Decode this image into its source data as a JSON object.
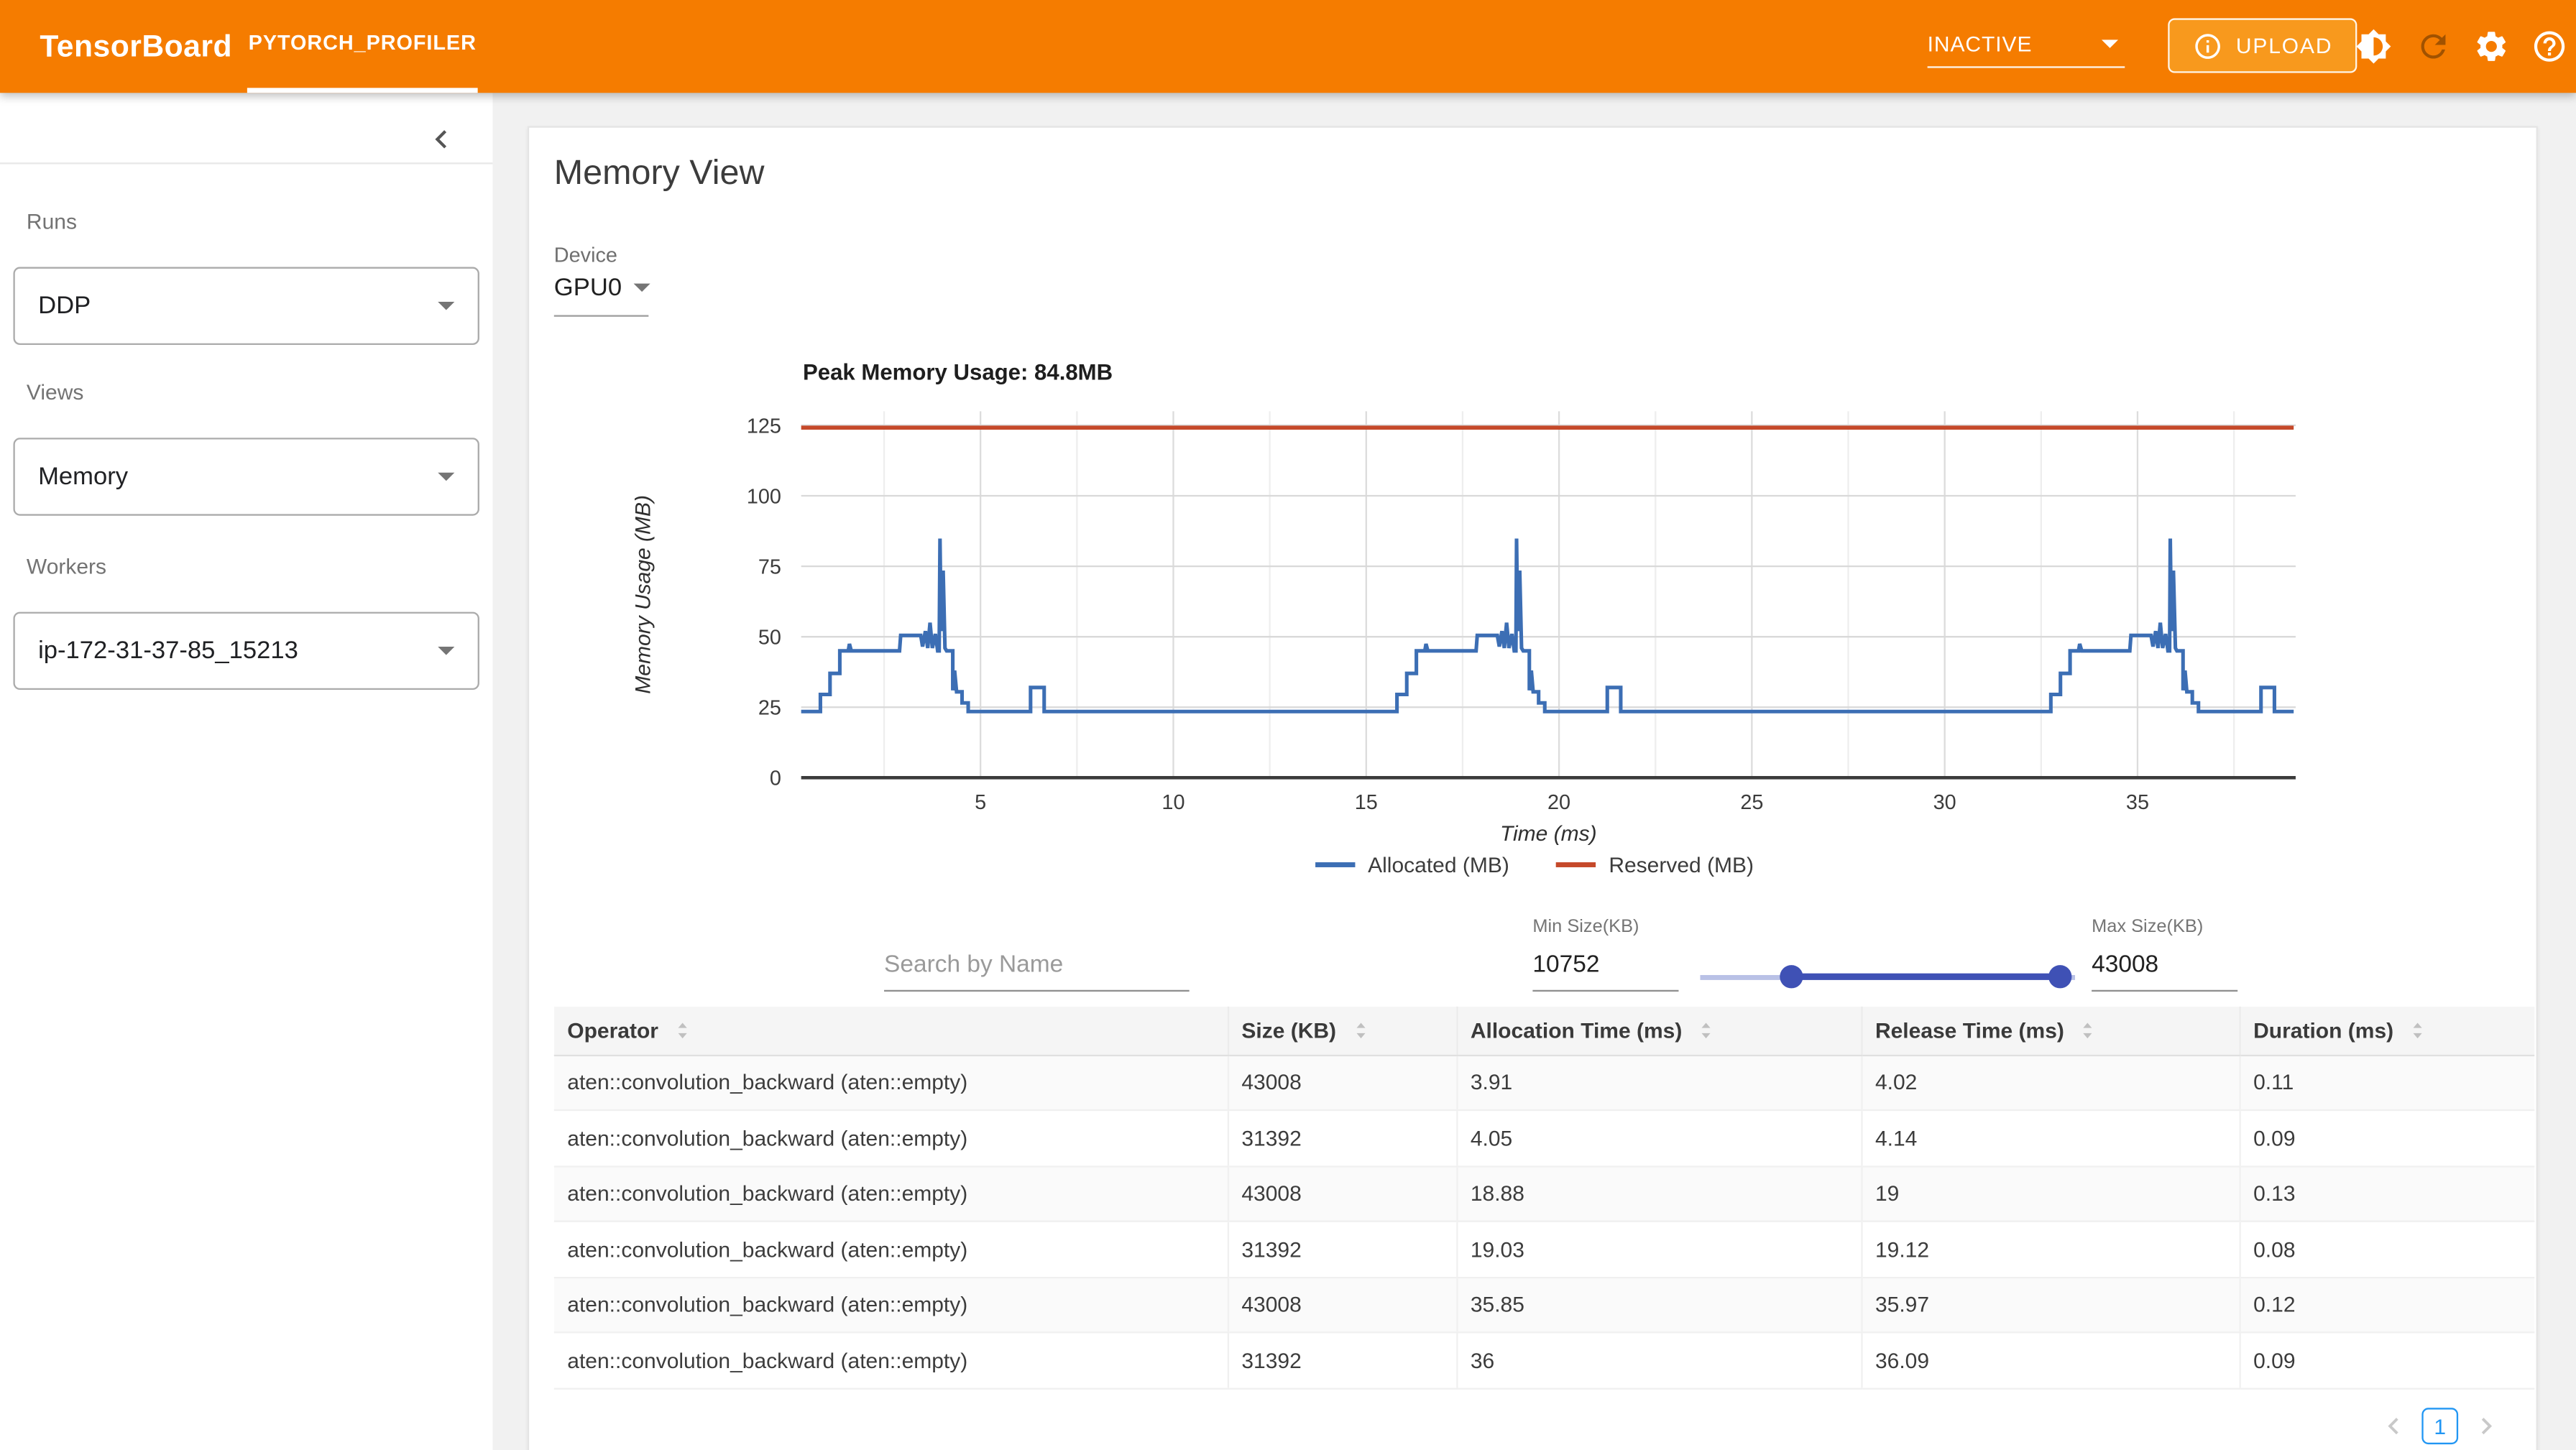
{
  "header": {
    "brand": "TensorBoard",
    "active_tab": "PYTORCH_PROFILER",
    "run_status": "INACTIVE",
    "upload_button": "UPLOAD",
    "icons": [
      "info-icon",
      "brightness-icon",
      "refresh-icon",
      "settings-icon",
      "help-icon"
    ]
  },
  "sidebar": {
    "collapse_icon": "chevron-left-icon",
    "sections": [
      {
        "label": "Runs",
        "value": "DDP"
      },
      {
        "label": "Views",
        "value": "Memory"
      },
      {
        "label": "Workers",
        "value": "ip-172-31-37-85_15213"
      }
    ]
  },
  "main": {
    "title": "Memory View",
    "device": {
      "label": "Device",
      "value": "GPU0"
    },
    "filters": {
      "search_placeholder": "Search by Name",
      "min_size": {
        "label": "Min Size(KB)",
        "value": "10752"
      },
      "max_size": {
        "label": "Max Size(KB)",
        "value": "43008"
      }
    }
  },
  "chart_data": {
    "type": "line",
    "title": "Peak Memory Usage: 84.8MB",
    "xlabel": "Time (ms)",
    "ylabel": "Memory Usage (MB)",
    "x_ticks": [
      5,
      10,
      15,
      20,
      25,
      30,
      35
    ],
    "y_ticks": [
      0,
      25,
      50,
      75,
      100,
      125
    ],
    "xlim": [
      0.35,
      39.1
    ],
    "ylim": [
      0,
      130
    ],
    "grid": true,
    "legend_position": "bottom",
    "series": [
      {
        "name": "Allocated (MB)",
        "color": "#3C6EB4",
        "points": [
          [
            0.35,
            23.5
          ],
          [
            0.85,
            23.5
          ],
          [
            0.85,
            29.5
          ],
          [
            1.1,
            29.5
          ],
          [
            1.1,
            37
          ],
          [
            1.35,
            37
          ],
          [
            1.35,
            45
          ],
          [
            1.57,
            45
          ],
          [
            1.6,
            47.5
          ],
          [
            1.65,
            45
          ],
          [
            2.9,
            45
          ],
          [
            2.93,
            50.5
          ],
          [
            3.45,
            50.5
          ],
          [
            3.5,
            46.5
          ],
          [
            3.57,
            52
          ],
          [
            3.63,
            46
          ],
          [
            3.69,
            55
          ],
          [
            3.75,
            46
          ],
          [
            3.83,
            51
          ],
          [
            3.89,
            45
          ],
          [
            3.93,
            45
          ],
          [
            3.95,
            84.8
          ],
          [
            3.98,
            52
          ],
          [
            4.03,
            73.5
          ],
          [
            4.08,
            46
          ],
          [
            4.12,
            45
          ],
          [
            4.28,
            45
          ],
          [
            4.28,
            31
          ],
          [
            4.33,
            38
          ],
          [
            4.38,
            30.5
          ],
          [
            4.52,
            30.5
          ],
          [
            4.52,
            26.5
          ],
          [
            4.68,
            26.5
          ],
          [
            4.68,
            23.5
          ],
          [
            6.3,
            23.5
          ],
          [
            6.3,
            32
          ],
          [
            6.65,
            32
          ],
          [
            6.65,
            23.5
          ],
          [
            15.8,
            23.5
          ],
          [
            15.8,
            29.5
          ],
          [
            16.05,
            29.5
          ],
          [
            16.05,
            37
          ],
          [
            16.3,
            37
          ],
          [
            16.3,
            45
          ],
          [
            16.52,
            45
          ],
          [
            16.55,
            47.5
          ],
          [
            16.6,
            45
          ],
          [
            17.85,
            45
          ],
          [
            17.88,
            50.5
          ],
          [
            18.4,
            50.5
          ],
          [
            18.45,
            46.5
          ],
          [
            18.52,
            52
          ],
          [
            18.58,
            46
          ],
          [
            18.64,
            55
          ],
          [
            18.7,
            46
          ],
          [
            18.78,
            51
          ],
          [
            18.84,
            45
          ],
          [
            18.88,
            45
          ],
          [
            18.9,
            84.8
          ],
          [
            18.93,
            52
          ],
          [
            18.98,
            73.5
          ],
          [
            19.03,
            46
          ],
          [
            19.07,
            45
          ],
          [
            19.23,
            45
          ],
          [
            19.23,
            31
          ],
          [
            19.28,
            38
          ],
          [
            19.33,
            30.5
          ],
          [
            19.47,
            30.5
          ],
          [
            19.47,
            26.5
          ],
          [
            19.63,
            26.5
          ],
          [
            19.63,
            23.5
          ],
          [
            21.25,
            23.5
          ],
          [
            21.25,
            32
          ],
          [
            21.6,
            32
          ],
          [
            21.6,
            23.5
          ],
          [
            32.75,
            23.5
          ],
          [
            32.75,
            29.5
          ],
          [
            33.0,
            29.5
          ],
          [
            33.0,
            37
          ],
          [
            33.25,
            37
          ],
          [
            33.25,
            45
          ],
          [
            33.47,
            45
          ],
          [
            33.5,
            47.5
          ],
          [
            33.55,
            45
          ],
          [
            34.8,
            45
          ],
          [
            34.83,
            50.5
          ],
          [
            35.35,
            50.5
          ],
          [
            35.4,
            46.5
          ],
          [
            35.47,
            52
          ],
          [
            35.53,
            46
          ],
          [
            35.59,
            55
          ],
          [
            35.65,
            46
          ],
          [
            35.73,
            51
          ],
          [
            35.79,
            45
          ],
          [
            35.83,
            45
          ],
          [
            35.85,
            84.8
          ],
          [
            35.88,
            52
          ],
          [
            35.93,
            73.5
          ],
          [
            35.98,
            46
          ],
          [
            36.02,
            45
          ],
          [
            36.18,
            45
          ],
          [
            36.18,
            31
          ],
          [
            36.23,
            38
          ],
          [
            36.28,
            30.5
          ],
          [
            36.42,
            30.5
          ],
          [
            36.42,
            26.5
          ],
          [
            36.58,
            26.5
          ],
          [
            36.58,
            23.5
          ],
          [
            38.2,
            23.5
          ],
          [
            38.2,
            32
          ],
          [
            38.55,
            32
          ],
          [
            38.55,
            23.5
          ],
          [
            39.05,
            23.5
          ]
        ]
      },
      {
        "name": "Reserved (MB)",
        "color": "#C5492A",
        "points": [
          [
            0.35,
            124.2
          ],
          [
            39.05,
            124.2
          ]
        ]
      }
    ]
  },
  "table": {
    "columns": [
      "Operator",
      "Size (KB)",
      "Allocation Time (ms)",
      "Release Time (ms)",
      "Duration (ms)"
    ],
    "rows": [
      [
        "aten::convolution_backward (aten::empty)",
        "43008",
        "3.91",
        "4.02",
        "0.11"
      ],
      [
        "aten::convolution_backward (aten::empty)",
        "31392",
        "4.05",
        "4.14",
        "0.09"
      ],
      [
        "aten::convolution_backward (aten::empty)",
        "43008",
        "18.88",
        "19",
        "0.13"
      ],
      [
        "aten::convolution_backward (aten::empty)",
        "31392",
        "19.03",
        "19.12",
        "0.08"
      ],
      [
        "aten::convolution_backward (aten::empty)",
        "43008",
        "35.85",
        "35.97",
        "0.12"
      ],
      [
        "aten::convolution_backward (aten::empty)",
        "31392",
        "36",
        "36.09",
        "0.09"
      ]
    ]
  },
  "pagination": {
    "current_page": "1"
  },
  "colors": {
    "accent_orange": "#F57C00",
    "upload_orange": "#F8991D",
    "allocated_blue": "#3C6EB4",
    "reserved_red": "#C5492A",
    "slider_indigo": "#3F51B5",
    "pagination_blue": "#2196F3"
  }
}
